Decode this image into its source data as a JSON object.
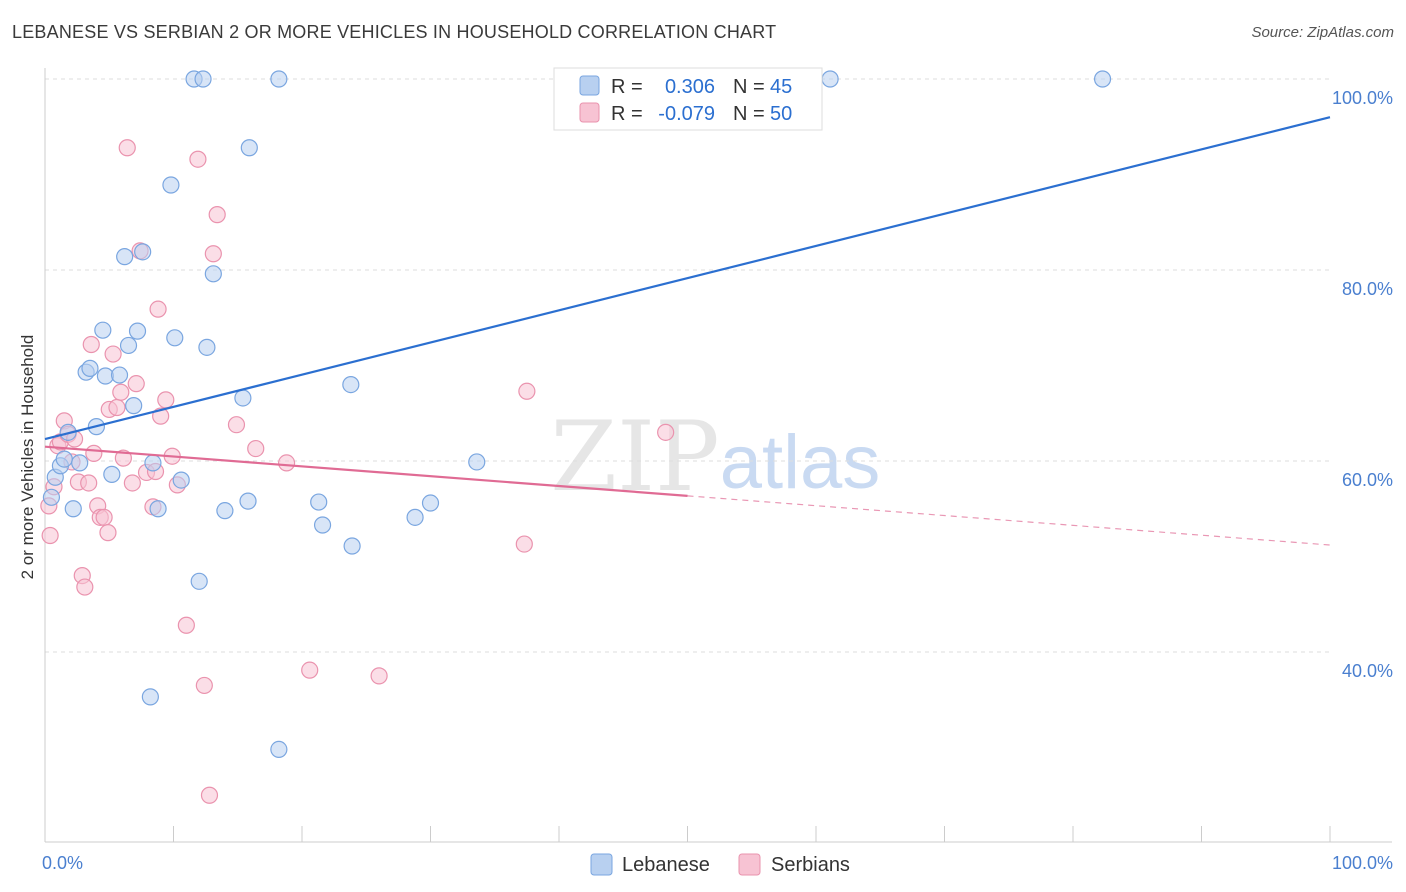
{
  "title": "LEBANESE VS SERBIAN 2 OR MORE VEHICLES IN HOUSEHOLD CORRELATION CHART",
  "source": "Source: ZipAtlas.com",
  "watermark": {
    "zip": "ZIP",
    "atlas": "atlas"
  },
  "legend": {
    "rows": [
      {
        "r_label": "R =",
        "r_value": "0.306",
        "n_label": "N =",
        "n_value": "45"
      },
      {
        "r_label": "R =",
        "r_value": "-0.079",
        "n_label": "N =",
        "n_value": "50"
      }
    ]
  },
  "colors": {
    "lebanese_fill": "#b8d0f0",
    "lebanese_stroke": "#7aa6e0",
    "lebanese_line": "#2b6fd0",
    "serbian_fill": "#f7c3d3",
    "serbian_stroke": "#ea93ae",
    "serbian_line": "#e06b94",
    "value_text": "#2b6fd0",
    "grid": "#dddddd"
  },
  "chart_data": {
    "type": "scatter",
    "title": "LEBANESE VS SERBIAN 2 OR MORE VEHICLES IN HOUSEHOLD CORRELATION CHART",
    "xlabel": "",
    "ylabel": "2 or more Vehicles in Household",
    "xlim": [
      0,
      100
    ],
    "ylim": [
      20,
      102
    ],
    "x_tick_labels": [
      "0.0%",
      "100.0%"
    ],
    "y_ticks": [
      {
        "value": 100,
        "label": "100.0%"
      },
      {
        "value": 80,
        "label": "80.0%"
      },
      {
        "value": 60,
        "label": "60.0%"
      },
      {
        "value": 40,
        "label": "40.0%"
      }
    ],
    "grid": true,
    "legend_position": "bottom",
    "series": [
      {
        "name": "Lebanese",
        "r": 0.306,
        "n": 45,
        "trend": {
          "x0": 0,
          "y0": 62.3,
          "x1": 100,
          "y1": 96.0,
          "solid_until": 100
        },
        "points": [
          [
            0.5,
            56.2
          ],
          [
            0.8,
            58.3
          ],
          [
            1.2,
            59.5
          ],
          [
            1.5,
            60.2
          ],
          [
            1.8,
            63.0
          ],
          [
            2.2,
            55.0
          ],
          [
            2.7,
            59.8
          ],
          [
            3.2,
            69.3
          ],
          [
            3.5,
            69.7
          ],
          [
            4.0,
            63.6
          ],
          [
            4.5,
            73.7
          ],
          [
            4.7,
            68.9
          ],
          [
            5.2,
            58.6
          ],
          [
            5.8,
            69.0
          ],
          [
            6.2,
            81.4
          ],
          [
            6.5,
            72.1
          ],
          [
            6.9,
            65.8
          ],
          [
            7.2,
            73.6
          ],
          [
            7.6,
            81.9
          ],
          [
            8.2,
            35.3
          ],
          [
            8.4,
            59.8
          ],
          [
            8.8,
            55.0
          ],
          [
            9.8,
            88.9
          ],
          [
            10.1,
            72.9
          ],
          [
            10.6,
            58.0
          ],
          [
            11.6,
            100.0
          ],
          [
            12.0,
            47.4
          ],
          [
            12.3,
            100.0
          ],
          [
            12.6,
            71.9
          ],
          [
            13.1,
            79.6
          ],
          [
            14.0,
            54.8
          ],
          [
            15.4,
            66.6
          ],
          [
            15.8,
            55.8
          ],
          [
            15.9,
            92.8
          ],
          [
            18.2,
            100.0
          ],
          [
            18.2,
            29.8
          ],
          [
            21.3,
            55.7
          ],
          [
            21.6,
            53.3
          ],
          [
            23.9,
            51.1
          ],
          [
            23.8,
            68.0
          ],
          [
            28.8,
            54.1
          ],
          [
            30.0,
            55.6
          ],
          [
            33.6,
            59.9
          ],
          [
            61.1,
            100.0
          ],
          [
            82.3,
            100.0
          ]
        ]
      },
      {
        "name": "Serbians",
        "r": -0.079,
        "n": 50,
        "trend": {
          "x0": 0,
          "y0": 61.5,
          "x1": 100,
          "y1": 51.2,
          "solid_until": 50
        },
        "points": [
          [
            0.3,
            55.3
          ],
          [
            0.4,
            52.2
          ],
          [
            0.7,
            57.3
          ],
          [
            1.0,
            61.6
          ],
          [
            1.2,
            62.0
          ],
          [
            1.5,
            64.2
          ],
          [
            1.8,
            62.8
          ],
          [
            2.1,
            59.9
          ],
          [
            2.3,
            62.3
          ],
          [
            2.6,
            57.8
          ],
          [
            2.9,
            48.0
          ],
          [
            3.1,
            46.8
          ],
          [
            3.4,
            57.7
          ],
          [
            3.6,
            72.2
          ],
          [
            3.8,
            60.8
          ],
          [
            4.1,
            55.3
          ],
          [
            4.3,
            54.1
          ],
          [
            4.6,
            54.1
          ],
          [
            5.0,
            65.4
          ],
          [
            5.3,
            71.2
          ],
          [
            5.6,
            65.6
          ],
          [
            5.9,
            67.2
          ],
          [
            6.1,
            60.3
          ],
          [
            6.4,
            92.8
          ],
          [
            6.8,
            57.7
          ],
          [
            7.1,
            68.1
          ],
          [
            7.4,
            82.0
          ],
          [
            7.9,
            58.8
          ],
          [
            8.4,
            55.2
          ],
          [
            8.6,
            58.9
          ],
          [
            8.8,
            75.9
          ],
          [
            9.0,
            64.7
          ],
          [
            9.4,
            66.4
          ],
          [
            10.3,
            57.5
          ],
          [
            11.0,
            42.8
          ],
          [
            11.9,
            91.6
          ],
          [
            12.4,
            36.5
          ],
          [
            12.8,
            25.0
          ],
          [
            13.1,
            81.7
          ],
          [
            13.4,
            85.8
          ],
          [
            14.9,
            63.8
          ],
          [
            16.4,
            61.3
          ],
          [
            18.8,
            59.8
          ],
          [
            20.6,
            38.1
          ],
          [
            26.0,
            37.5
          ],
          [
            37.3,
            51.3
          ],
          [
            37.5,
            67.3
          ],
          [
            48.3,
            63.0
          ],
          [
            4.9,
            52.5
          ],
          [
            9.9,
            60.5
          ]
        ]
      }
    ]
  }
}
